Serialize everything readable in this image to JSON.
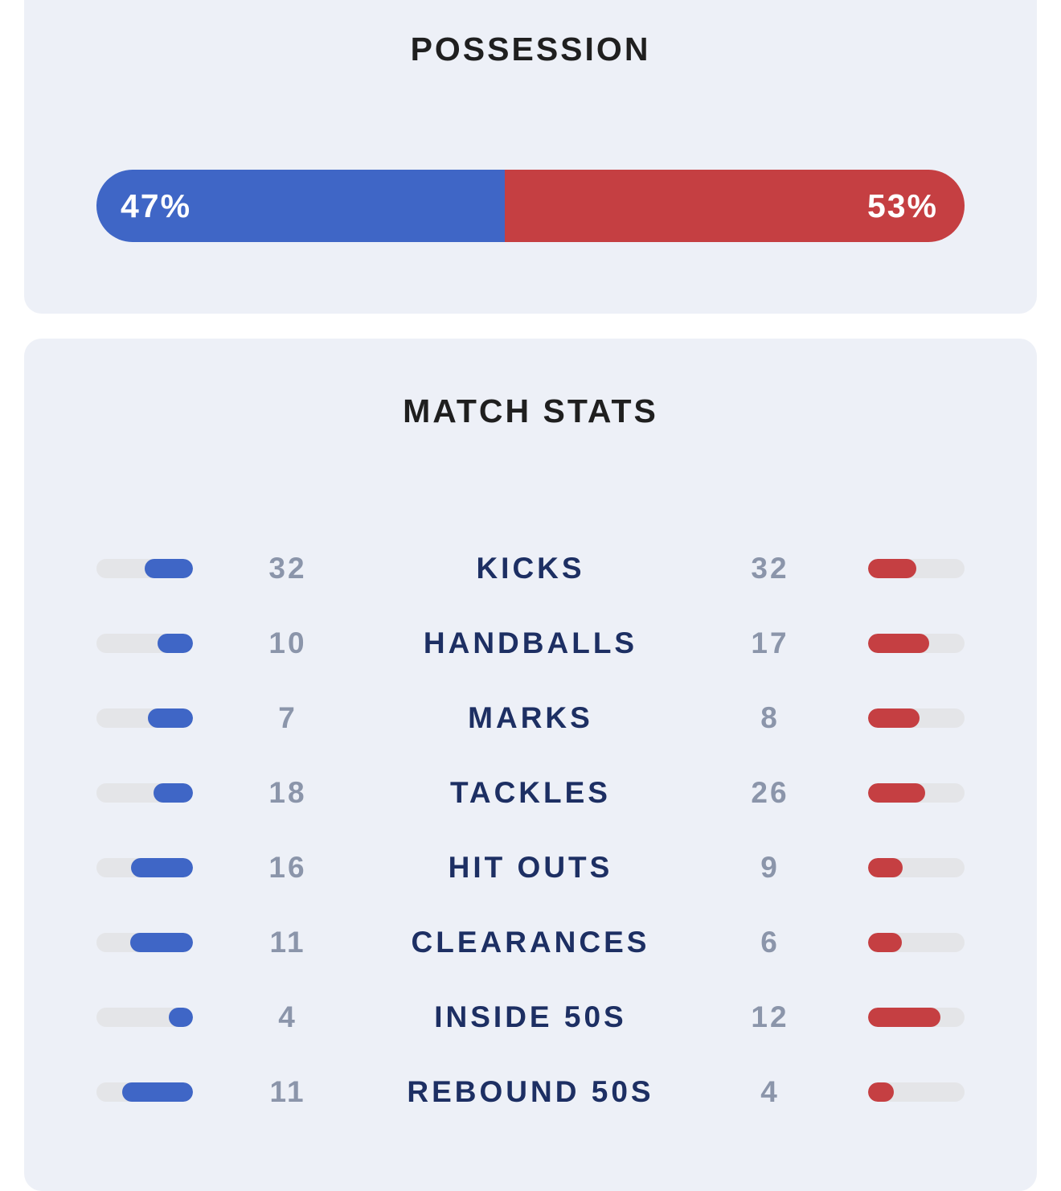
{
  "possession": {
    "title": "POSSESSION",
    "home_pct": 47,
    "away_pct": 53,
    "home_label": "47%",
    "away_label": "53%",
    "home_color": "#3f66c6",
    "away_color": "#c53f42"
  },
  "match_stats": {
    "title": "MATCH STATS",
    "rows": [
      {
        "label": "KICKS",
        "home": "32",
        "away": "32",
        "home_fill": 0.5,
        "away_fill": 0.5
      },
      {
        "label": "HANDBALLS",
        "home": "10",
        "away": "17",
        "home_fill": 0.37,
        "away_fill": 0.63
      },
      {
        "label": "MARKS",
        "home": "7",
        "away": "8",
        "home_fill": 0.47,
        "away_fill": 0.53
      },
      {
        "label": "TACKLES",
        "home": "18",
        "away": "26",
        "home_fill": 0.41,
        "away_fill": 0.59
      },
      {
        "label": "HIT OUTS",
        "home": "16",
        "away": "9",
        "home_fill": 0.64,
        "away_fill": 0.36
      },
      {
        "label": "CLEARANCES",
        "home": "11",
        "away": "6",
        "home_fill": 0.65,
        "away_fill": 0.35
      },
      {
        "label": "INSIDE 50S",
        "home": "4",
        "away": "12",
        "home_fill": 0.25,
        "away_fill": 0.75
      },
      {
        "label": "REBOUND 50S",
        "home": "11",
        "away": "4",
        "home_fill": 0.73,
        "away_fill": 0.27
      }
    ]
  }
}
